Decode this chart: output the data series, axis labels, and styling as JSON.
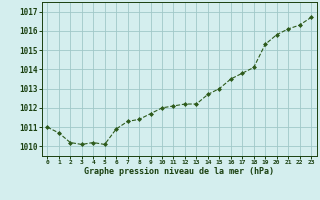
{
  "x": [
    0,
    1,
    2,
    3,
    4,
    5,
    6,
    7,
    8,
    9,
    10,
    11,
    12,
    13,
    14,
    15,
    16,
    17,
    18,
    19,
    20,
    21,
    22,
    23
  ],
  "y": [
    1011.0,
    1010.7,
    1010.2,
    1010.1,
    1010.2,
    1010.1,
    1010.9,
    1011.3,
    1011.4,
    1011.7,
    1012.0,
    1012.1,
    1012.2,
    1012.2,
    1012.7,
    1013.0,
    1013.5,
    1013.8,
    1014.1,
    1015.3,
    1015.8,
    1016.1,
    1016.3,
    1016.7
  ],
  "ylim": [
    1009.5,
    1017.5
  ],
  "yticks": [
    1010,
    1011,
    1012,
    1013,
    1014,
    1015,
    1016,
    1017
  ],
  "xlabel": "Graphe pression niveau de la mer (hPa)",
  "line_color": "#2d5a1b",
  "marker_color": "#2d5a1b",
  "bg_color": "#d4eeee",
  "grid_color": "#a0c8c8",
  "tick_label_color": "#1a4010",
  "xlabel_color": "#1a4010",
  "spine_color": "#1a4010"
}
